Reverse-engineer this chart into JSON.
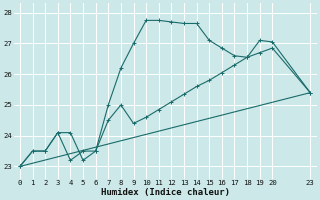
{
  "xlabel": "Humidex (Indice chaleur)",
  "bg_color": "#cce8e8",
  "line_color": "#1a6b6b",
  "grid_color": "#ffffff",
  "xlim": [
    -0.5,
    23.5
  ],
  "ylim": [
    22.6,
    28.3
  ],
  "yticks": [
    23,
    24,
    25,
    26,
    27,
    28
  ],
  "xticks": [
    0,
    1,
    2,
    3,
    4,
    5,
    6,
    7,
    8,
    9,
    10,
    11,
    12,
    13,
    14,
    15,
    16,
    17,
    18,
    19,
    20,
    23
  ],
  "line1_x": [
    0,
    1,
    2,
    3,
    4,
    5,
    6,
    7,
    8,
    9,
    10,
    11,
    12,
    13,
    14,
    15,
    16,
    17,
    18,
    19,
    20,
    23
  ],
  "line1_y": [
    23.0,
    23.5,
    23.5,
    24.1,
    23.2,
    23.5,
    23.5,
    24.5,
    25.0,
    24.4,
    24.6,
    24.85,
    25.1,
    25.35,
    25.6,
    25.8,
    26.05,
    26.3,
    26.55,
    26.7,
    26.85,
    25.4
  ],
  "line2_x": [
    0,
    1,
    2,
    3,
    4,
    5,
    6,
    7,
    8,
    9,
    10,
    11,
    12,
    13,
    14,
    15,
    16,
    17,
    18,
    19,
    20,
    23
  ],
  "line2_y": [
    23.0,
    23.5,
    23.5,
    24.1,
    24.1,
    23.2,
    23.5,
    25.0,
    26.2,
    27.0,
    27.75,
    27.75,
    27.7,
    27.65,
    27.65,
    27.1,
    26.85,
    26.6,
    26.55,
    27.1,
    27.05,
    25.4
  ],
  "line3_x": [
    0,
    23
  ],
  "line3_y": [
    23.0,
    25.4
  ],
  "xlabel_fontsize": 6.5,
  "tick_fontsize": 5.2
}
